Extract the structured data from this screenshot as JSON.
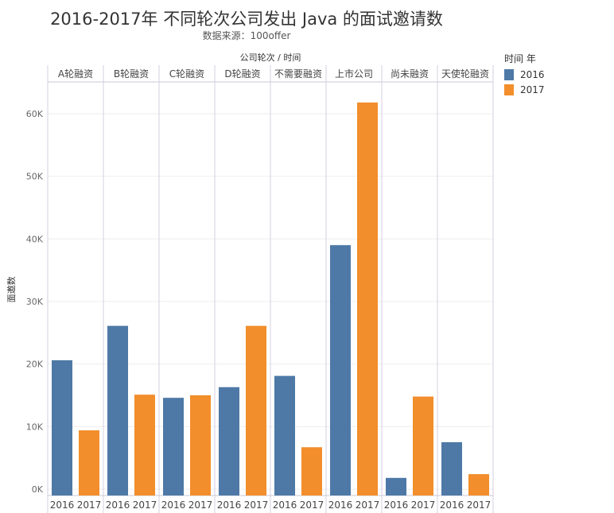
{
  "chart_data": {
    "type": "bar",
    "title": "2016-2017年 不同轮次公司发出 Java 的面试邀请数",
    "subtitle": "数据来源：100offer",
    "xlabel": "公司轮次 / 时间",
    "ylabel": "面邀数",
    "ylim": [
      0,
      65000
    ],
    "yticks": [
      "0K",
      "10K",
      "20K",
      "30K",
      "40K",
      "50K",
      "60K"
    ],
    "categories": [
      "A轮融资",
      "B轮融资",
      "C轮融资",
      "D轮融资",
      "不需要融资",
      "上市公司",
      "尚未融资",
      "天使轮融资"
    ],
    "legend_title": "时间 年",
    "legend_position": "right",
    "series": [
      {
        "name": "2016",
        "color": "#4e79a7",
        "values": [
          20600,
          26100,
          14600,
          16300,
          18100,
          39000,
          1800,
          7500
        ]
      },
      {
        "name": "2017",
        "color": "#f28e2b",
        "values": [
          9400,
          15100,
          15000,
          26100,
          6700,
          61800,
          14800,
          2400
        ]
      }
    ]
  }
}
